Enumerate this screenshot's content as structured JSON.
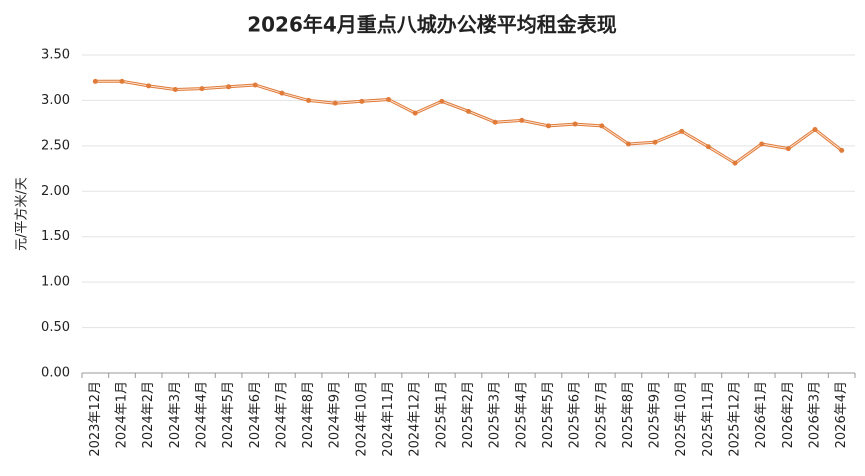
{
  "chart_data": {
    "type": "line",
    "title": "2026年4月重点八城办公楼平均租金表现",
    "y_label": "元/平方米/天",
    "categories": [
      "2023年12月",
      "2024年1月",
      "2024年2月",
      "2024年3月",
      "2024年4月",
      "2024年5月",
      "2024年6月",
      "2024年7月",
      "2024年8月",
      "2024年9月",
      "2024年10月",
      "2024年11月",
      "2024年12月",
      "2025年1月",
      "2025年2月",
      "2025年3月",
      "2025年4月",
      "2025年5月",
      "2025年6月",
      "2025年7月",
      "2025年8月",
      "2025年9月",
      "2025年10月",
      "2025年11月",
      "2025年12月",
      "2026年1月",
      "2026年2月",
      "2026年3月",
      "2026年4月"
    ],
    "values": [
      3.21,
      3.21,
      3.16,
      3.12,
      3.13,
      3.15,
      3.17,
      3.08,
      3.0,
      2.97,
      2.99,
      3.01,
      2.86,
      2.99,
      2.88,
      2.76,
      2.78,
      2.72,
      2.74,
      2.72,
      2.52,
      2.54,
      2.66,
      2.49,
      2.31,
      2.52,
      2.47,
      2.68,
      2.45
    ],
    "color": "#e07b39",
    "ylim": [
      0,
      3.5
    ],
    "yticks": [
      {
        "value": 0,
        "label": "0.00"
      },
      {
        "value": 0.5,
        "label": "0.50"
      },
      {
        "value": 1,
        "label": "1.00"
      },
      {
        "value": 1.5,
        "label": "1.50"
      },
      {
        "value": 2,
        "label": "2.00"
      },
      {
        "value": 2.5,
        "label": "2.50"
      },
      {
        "value": 3,
        "label": "3.00"
      },
      {
        "value": 3.5,
        "label": "3.50"
      }
    ],
    "grid": true
  }
}
